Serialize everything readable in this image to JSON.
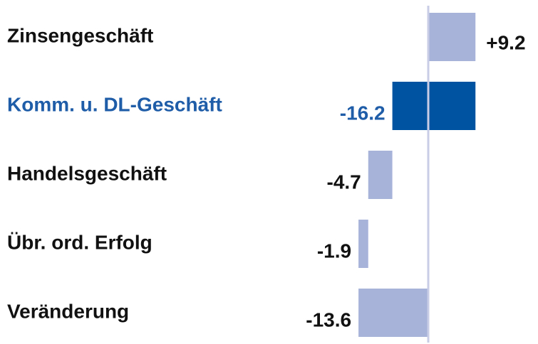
{
  "chart_data": {
    "type": "waterfall",
    "categories": [
      "Zinsengeschäft",
      "Komm. u. DL-Geschäft",
      "Handelsgeschäft",
      "Übr. ord. Erfolg",
      "Veränderung"
    ],
    "values": [
      9.2,
      -16.2,
      -4.7,
      -1.9,
      -13.6
    ],
    "value_labels": [
      "+9.2",
      "-16.2",
      "-4.7",
      "-1.9",
      "-13.6"
    ],
    "measure": [
      "relative",
      "relative",
      "relative",
      "relative",
      "total"
    ],
    "colors": [
      "#a8b3da",
      "#0053a1",
      "#a8b3da",
      "#a8b3da",
      "#a8b3da"
    ],
    "label_colors": [
      "#111111",
      "#1f5da8",
      "#111111",
      "#111111",
      "#111111"
    ]
  }
}
